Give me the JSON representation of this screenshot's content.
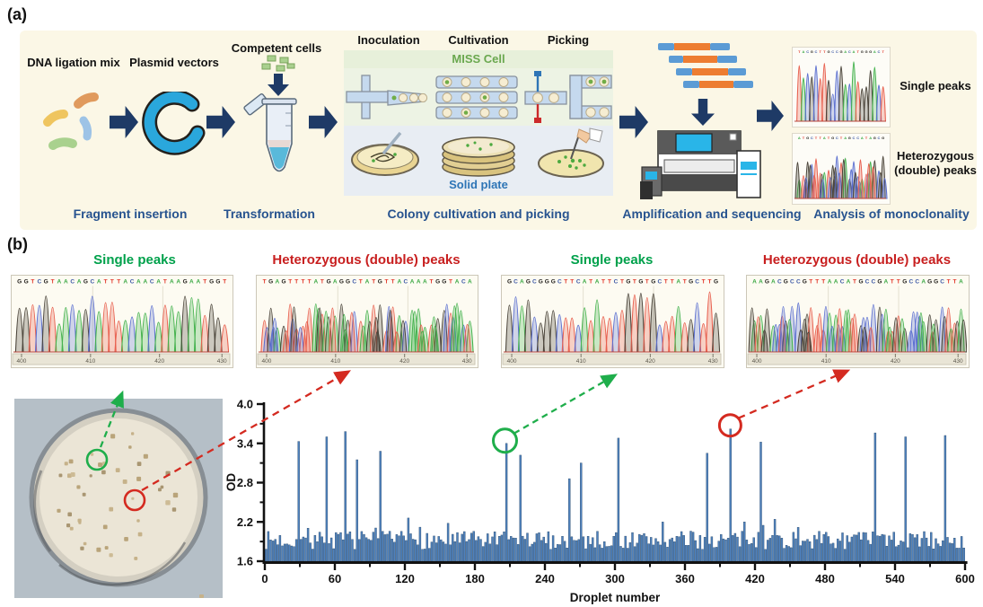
{
  "colors": {
    "accent_navy": "#1e3a66",
    "stage_blue": "#27538f",
    "miss_green": "#6aa84f",
    "solid_blue": "#2e75b6",
    "single_green": "#00a14b",
    "hetero_red": "#c81f1f",
    "bar_fill": "#4e81bd",
    "bar_edge": "#2a4a6b",
    "base_A": "#3aa843",
    "base_T": "#e2392c",
    "base_C": "#3a56a5",
    "base_G": "#23201c",
    "trace_A": "#45b24e",
    "trace_T": "#e8604f",
    "trace_C": "#5b6fd0",
    "trace_G": "#4a443a"
  },
  "panel_a": {
    "label": "(a)",
    "items": {
      "dna_ligation_mix": "DNA ligation mix",
      "plasmid_vectors": "Plasmid vectors",
      "competent_cells": "Competent cells"
    },
    "grid_headers": [
      "Inoculation",
      "Cultivation",
      "Picking"
    ],
    "miss_cell_label": "MISS Cell",
    "solid_plate_label": "Solid plate",
    "stage_labels": [
      "Fragment insertion",
      "Transformation",
      "Colony cultivation and picking",
      "Amplification and sequencing",
      "Analysis of monoclonality"
    ],
    "result_labels": {
      "single": "Single peaks",
      "hetero": "Heterozygous (double) peaks"
    },
    "mini_traces": [
      {
        "sequence": "TACGCTTGCCGACATGGGACT",
        "type": "single"
      },
      {
        "sequence": "ATGCTTATGCTAGCCATAGCG",
        "type": "double"
      }
    ]
  },
  "panel_b": {
    "label": "(b)",
    "ruler_ticks": [
      "400",
      "410",
      "420",
      "430"
    ],
    "chromatograms": [
      {
        "title": "Single peaks",
        "type": "single",
        "sequence": "GGTCGTAACAGCATTTACAACATAAGAATGGT"
      },
      {
        "title": "Heterozygous (double) peaks",
        "type": "double",
        "sequence": "TGAGTTTTATGAGGCTATGTTACAAATGGTACA"
      },
      {
        "title": "Single peaks",
        "type": "single",
        "sequence": "GCAGCGGGCTTCATATTCTGTGTGCTTATGCTTG"
      },
      {
        "title": "Heterozygous (double) peaks",
        "type": "double",
        "sequence": "AAGACGCCGTTTAACATGCCGATTGCCAGGCTTA"
      }
    ],
    "petri": {
      "approx_colony_count": 46
    }
  },
  "chart_data": {
    "type": "bar",
    "title": "",
    "xlabel": "Droplet number",
    "ylabel": "OD",
    "xlim": [
      0,
      600
    ],
    "ylim": [
      1.6,
      4.0
    ],
    "x_ticks": [
      0,
      60,
      120,
      180,
      240,
      300,
      360,
      420,
      480,
      540,
      600
    ],
    "x_minor_step": 30,
    "y_ticks": [
      1.6,
      2.2,
      2.8,
      3.4,
      4.0
    ],
    "y_minor_ticks": [
      1.9,
      2.5,
      3.1,
      3.7
    ],
    "n_droplets": 600,
    "bar_step": 2,
    "baseline": {
      "min": 1.78,
      "max": 2.06
    },
    "spikes": [
      [
        27,
        3.43
      ],
      [
        52,
        3.5
      ],
      [
        67,
        3.58
      ],
      [
        78,
        3.15
      ],
      [
        98,
        3.28
      ],
      [
        122,
        2.26
      ],
      [
        131,
        2.12
      ],
      [
        156,
        2.18
      ],
      [
        205,
        3.4
      ],
      [
        218,
        3.22
      ],
      [
        259,
        2.86
      ],
      [
        269,
        3.1
      ],
      [
        302,
        3.48
      ],
      [
        340,
        2.2
      ],
      [
        377,
        3.25
      ],
      [
        398,
        3.62
      ],
      [
        423,
        3.42
      ],
      [
        435,
        2.24
      ],
      [
        522,
        3.56
      ],
      [
        548,
        3.5
      ],
      [
        581,
        3.52
      ]
    ],
    "highlights": {
      "green_circle": {
        "droplet": 205,
        "od": 3.4
      },
      "red_circle": {
        "droplet": 398,
        "od": 3.62
      }
    },
    "grid": false,
    "legend": null
  }
}
